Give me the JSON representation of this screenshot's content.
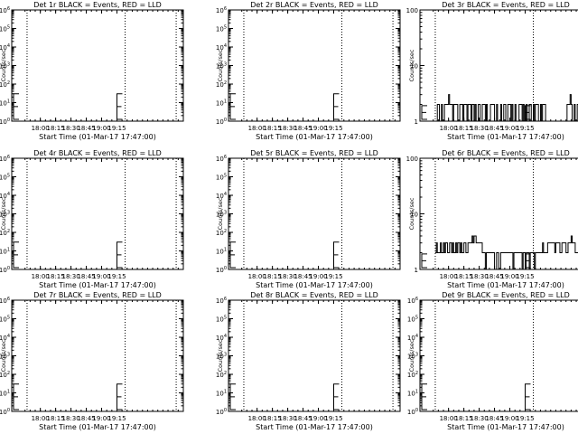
{
  "colors": {
    "events": "#000000",
    "lld": "#ff0000",
    "background": "#ffffff"
  },
  "chart_data": [
    {
      "type": "line",
      "title": "Det 1r BLACK = Events, RED = LLD",
      "xlabel": "Start Time (01-Mar-17 17:47:00)",
      "ylabel": "Counts/sec",
      "x_range_min": [
        -15,
        153
      ],
      "xticks": [
        13,
        28,
        43,
        58,
        73,
        88
      ],
      "xtick_labels": [
        "18:00",
        "18:15",
        "18:30",
        "18:45",
        "19:00",
        "19:15"
      ],
      "y_scale": "log",
      "ylim": [
        1,
        1000000
      ],
      "yticks": [
        1,
        10,
        100,
        1000,
        10000,
        100000,
        1000000
      ],
      "ytick_labels": [
        "10^0",
        "10^1",
        "10^2",
        "10^3",
        "10^4",
        "10^5",
        "10^6"
      ],
      "vlines": [
        0,
        96,
        146
      ],
      "marker_x": [
        -15,
        88
      ],
      "series": [
        {
          "color": "#000000",
          "x": [],
          "y": []
        }
      ]
    },
    {
      "type": "line",
      "title": "Det 2r BLACK = Events, RED = LLD",
      "xlabel": "Start Time (01-Mar-17 17:47:00)",
      "ylabel": "Counts/sec",
      "x_range_min": [
        -15,
        153
      ],
      "xticks": [
        13,
        28,
        43,
        58,
        73,
        88
      ],
      "xtick_labels": [
        "18:00",
        "18:15",
        "18:30",
        "18:45",
        "19:00",
        "19:15"
      ],
      "y_scale": "log",
      "ylim": [
        1,
        1000000
      ],
      "yticks": [
        1,
        10,
        100,
        1000,
        10000,
        100000,
        1000000
      ],
      "ytick_labels": [
        "10^0",
        "10^1",
        "10^2",
        "10^3",
        "10^4",
        "10^5",
        "10^6"
      ],
      "vlines": [
        0,
        96,
        146
      ],
      "marker_x": [
        -15,
        88
      ],
      "series": [
        {
          "color": "#000000",
          "x": [],
          "y": []
        }
      ]
    },
    {
      "type": "line",
      "title": "Det 3r BLACK = Events, RED = LLD",
      "xlabel": "Start Time (01-Mar-17 17:47:00)",
      "ylabel": "Counts/sec",
      "x_range_min": [
        -15,
        153
      ],
      "xticks": [
        13,
        28,
        43,
        58,
        73,
        88
      ],
      "xtick_labels": [
        "18:00",
        "18:15",
        "18:30",
        "18:45",
        "19:00",
        "19:15"
      ],
      "y_scale": "log",
      "ylim": [
        1,
        100
      ],
      "yticks": [
        1,
        10,
        100
      ],
      "ytick_labels": [
        "1",
        "10",
        "100"
      ],
      "vlines": [
        0,
        96,
        146
      ],
      "marker_x": [
        -15,
        88
      ],
      "lld_marks_x": [
        145,
        149
      ],
      "series": [
        {
          "color": "#000000",
          "x": [
            0,
            2,
            3,
            4,
            6,
            7,
            9,
            10,
            11,
            13,
            14,
            16,
            17,
            18,
            20,
            21,
            22,
            24,
            25,
            27,
            28,
            29,
            31,
            32,
            34,
            35,
            36,
            38,
            39,
            40,
            42,
            43,
            44,
            46,
            47,
            49,
            50,
            51,
            53,
            54,
            56,
            57,
            58,
            60,
            61,
            62,
            64,
            65,
            67,
            68,
            69,
            71,
            72,
            74,
            75,
            76,
            78,
            79,
            80,
            82,
            83,
            85,
            86,
            87,
            89,
            90,
            92,
            93,
            94,
            96,
            97,
            98,
            100,
            101,
            103,
            104,
            105,
            107,
            108,
            109,
            111,
            112,
            114,
            115,
            116,
            118,
            119,
            121,
            122,
            123,
            125,
            126,
            127,
            129,
            130,
            132,
            133,
            134,
            136,
            137,
            139,
            140,
            141,
            143,
            144,
            145
          ],
          "y": [
            1,
            2,
            2,
            1,
            2,
            1,
            2,
            2,
            2,
            3,
            2,
            2,
            1,
            2,
            2,
            2,
            1,
            2,
            2,
            1,
            2,
            2,
            1,
            2,
            2,
            1,
            2,
            1,
            2,
            1,
            2,
            2,
            1,
            2,
            2,
            1,
            2,
            1,
            1,
            2,
            2,
            2,
            1,
            2,
            1,
            1,
            2,
            1,
            2,
            2,
            1,
            2,
            2,
            1,
            2,
            1,
            2,
            1,
            1,
            2,
            2,
            1,
            2,
            1,
            2,
            1,
            2,
            2,
            1,
            2,
            1,
            2,
            2,
            1,
            2,
            1,
            2,
            2,
            1,
            1,
            1,
            1,
            1,
            1,
            1,
            1,
            1,
            1,
            1,
            1,
            1,
            1,
            1,
            2,
            2,
            3,
            2,
            1,
            2,
            1,
            2,
            2,
            2,
            1,
            2,
            2
          ]
        }
      ]
    },
    {
      "type": "line",
      "title": "Det 4r BLACK = Events, RED = LLD",
      "xlabel": "Start Time (01-Mar-17 17:47:00)",
      "ylabel": "Counts/sec",
      "x_range_min": [
        -15,
        153
      ],
      "xticks": [
        13,
        28,
        43,
        58,
        73,
        88
      ],
      "xtick_labels": [
        "18:00",
        "18:15",
        "18:30",
        "18:45",
        "19:00",
        "19:15"
      ],
      "y_scale": "log",
      "ylim": [
        1,
        1000000
      ],
      "yticks": [
        1,
        10,
        100,
        1000,
        10000,
        100000,
        1000000
      ],
      "ytick_labels": [
        "10^0",
        "10^1",
        "10^2",
        "10^3",
        "10^4",
        "10^5",
        "10^6"
      ],
      "vlines": [
        0,
        96,
        146
      ],
      "marker_x": [
        -15,
        88
      ],
      "series": [
        {
          "color": "#000000",
          "x": [],
          "y": []
        }
      ]
    },
    {
      "type": "line",
      "title": "Det 5r BLACK = Events, RED = LLD",
      "xlabel": "Start Time (01-Mar-17 17:47:00)",
      "ylabel": "Counts/sec",
      "x_range_min": [
        -15,
        153
      ],
      "xticks": [
        13,
        28,
        43,
        58,
        73,
        88
      ],
      "xtick_labels": [
        "18:00",
        "18:15",
        "18:30",
        "18:45",
        "19:00",
        "19:15"
      ],
      "y_scale": "log",
      "ylim": [
        1,
        1000000
      ],
      "yticks": [
        1,
        10,
        100,
        1000,
        10000,
        100000,
        1000000
      ],
      "ytick_labels": [
        "10^0",
        "10^1",
        "10^2",
        "10^3",
        "10^4",
        "10^5",
        "10^6"
      ],
      "vlines": [
        0,
        96,
        146
      ],
      "marker_x": [
        -15,
        88
      ],
      "series": [
        {
          "color": "#000000",
          "x": [],
          "y": []
        }
      ]
    },
    {
      "type": "line",
      "title": "Det 6r BLACK = Events, RED = LLD",
      "xlabel": "Start Time (01-Mar-17 17:47:00)",
      "ylabel": "Counts/sec",
      "x_range_min": [
        -15,
        153
      ],
      "xticks": [
        13,
        28,
        43,
        58,
        73,
        88
      ],
      "xtick_labels": [
        "18:00",
        "18:15",
        "18:30",
        "18:45",
        "19:00",
        "19:15"
      ],
      "y_scale": "log",
      "ylim": [
        1,
        100
      ],
      "yticks": [
        1,
        10,
        100
      ],
      "ytick_labels": [
        "1",
        "10",
        "100"
      ],
      "vlines": [
        0,
        96,
        146
      ],
      "marker_x": [
        -15,
        88
      ],
      "series": [
        {
          "color": "#000000",
          "x": [
            0,
            1,
            2,
            4,
            5,
            6,
            8,
            9,
            10,
            12,
            13,
            14,
            16,
            17,
            18,
            20,
            21,
            22,
            24,
            25,
            26,
            28,
            29,
            30,
            32,
            33,
            34,
            36,
            37,
            38,
            40,
            41,
            42,
            44,
            45,
            46,
            48,
            49,
            50,
            52,
            53,
            54,
            56,
            57,
            58,
            60,
            61,
            62,
            64,
            65,
            66,
            68,
            69,
            70,
            72,
            73,
            74,
            76,
            77,
            78,
            80,
            81,
            82,
            84,
            85,
            86,
            88,
            89,
            90,
            92,
            93,
            94,
            96,
            97,
            98,
            100,
            101,
            102,
            104,
            105,
            106,
            108,
            109,
            110,
            112,
            113,
            114,
            116,
            117,
            118,
            120,
            121,
            122,
            124,
            125,
            126,
            128,
            129,
            130,
            132,
            133,
            134,
            136,
            137,
            138,
            140,
            141,
            142,
            144,
            145,
            146,
            150
          ],
          "y": [
            2,
            3,
            2,
            2,
            3,
            2,
            3,
            2,
            3,
            2,
            2,
            3,
            2,
            3,
            2,
            3,
            2,
            3,
            2,
            3,
            2,
            3,
            3,
            2,
            3,
            3,
            3,
            4,
            3,
            4,
            3,
            3,
            3,
            3,
            3,
            2,
            2,
            1,
            2,
            2,
            2,
            2,
            2,
            2,
            1,
            2,
            2,
            1,
            2,
            2,
            2,
            2,
            2,
            2,
            2,
            2,
            2,
            1,
            2,
            2,
            2,
            2,
            2,
            2,
            1,
            2,
            1,
            2,
            2,
            1,
            2,
            2,
            2,
            1,
            2,
            2,
            2,
            2,
            2,
            3,
            2,
            2,
            2,
            3,
            3,
            3,
            3,
            3,
            2,
            3,
            3,
            3,
            2,
            3,
            3,
            3,
            2,
            2,
            3,
            3,
            4,
            3,
            3,
            2,
            2,
            2,
            2,
            2,
            2,
            2,
            2,
            2
          ]
        }
      ]
    },
    {
      "type": "line",
      "title": "Det 7r BLACK = Events, RED = LLD",
      "xlabel": "Start Time (01-Mar-17 17:47:00)",
      "ylabel": "Counts/sec",
      "x_range_min": [
        -15,
        153
      ],
      "xticks": [
        13,
        28,
        43,
        58,
        73,
        88
      ],
      "xtick_labels": [
        "18:00",
        "18:15",
        "18:30",
        "18:45",
        "19:00",
        "19:15"
      ],
      "y_scale": "log",
      "ylim": [
        1,
        1000000
      ],
      "yticks": [
        1,
        10,
        100,
        1000,
        10000,
        100000,
        1000000
      ],
      "ytick_labels": [
        "10^0",
        "10^1",
        "10^2",
        "10^3",
        "10^4",
        "10^5",
        "10^6"
      ],
      "vlines": [
        0,
        96,
        146
      ],
      "marker_x": [
        -15,
        88
      ],
      "series": [
        {
          "color": "#000000",
          "x": [],
          "y": []
        }
      ]
    },
    {
      "type": "line",
      "title": "Det 8r BLACK = Events, RED = LLD",
      "xlabel": "Start Time (01-Mar-17 17:47:00)",
      "ylabel": "Counts/sec",
      "x_range_min": [
        -15,
        153
      ],
      "xticks": [
        13,
        28,
        43,
        58,
        73,
        88
      ],
      "xtick_labels": [
        "18:00",
        "18:15",
        "18:30",
        "18:45",
        "19:00",
        "19:15"
      ],
      "y_scale": "log",
      "ylim": [
        1,
        1000000
      ],
      "yticks": [
        1,
        10,
        100,
        1000,
        10000,
        100000,
        1000000
      ],
      "ytick_labels": [
        "10^0",
        "10^1",
        "10^2",
        "10^3",
        "10^4",
        "10^5",
        "10^6"
      ],
      "vlines": [
        0,
        96,
        146
      ],
      "marker_x": [
        -15,
        88
      ],
      "series": [
        {
          "color": "#000000",
          "x": [],
          "y": []
        }
      ]
    },
    {
      "type": "line",
      "title": "Det 9r BLACK = Events, RED = LLD",
      "xlabel": "Start Time (01-Mar-17 17:47:00)",
      "ylabel": "Counts/sec",
      "x_range_min": [
        -15,
        153
      ],
      "xticks": [
        13,
        28,
        43,
        58,
        73,
        88
      ],
      "xtick_labels": [
        "18:00",
        "18:15",
        "18:30",
        "18:45",
        "19:00",
        "19:15"
      ],
      "y_scale": "log",
      "ylim": [
        1,
        1000000
      ],
      "yticks": [
        1,
        10,
        100,
        1000,
        10000,
        100000,
        1000000
      ],
      "ytick_labels": [
        "10^0",
        "10^1",
        "10^2",
        "10^3",
        "10^4",
        "10^5",
        "10^6"
      ],
      "vlines": [
        0,
        96,
        146
      ],
      "marker_x": [
        -15,
        88
      ],
      "series": [
        {
          "color": "#000000",
          "x": [],
          "y": []
        }
      ]
    }
  ]
}
